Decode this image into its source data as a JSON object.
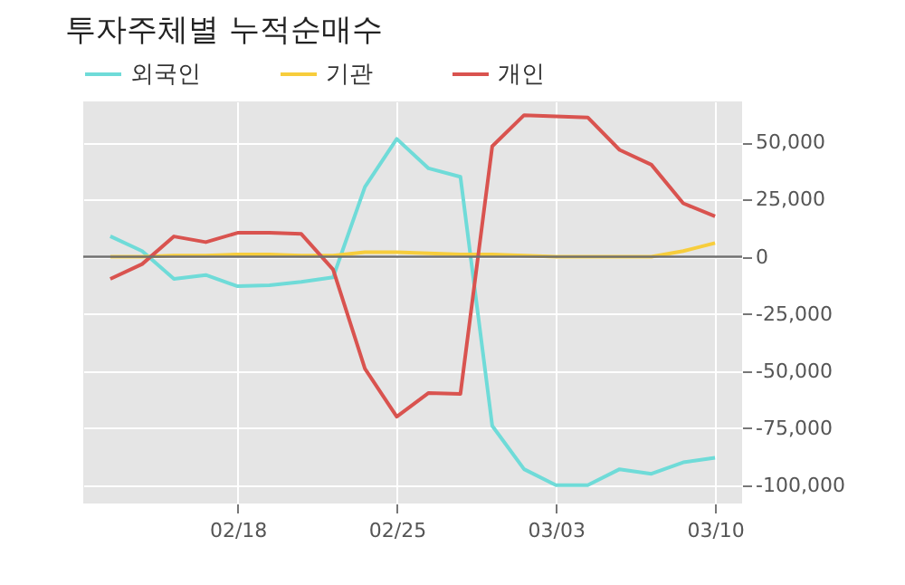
{
  "chart_data": {
    "type": "line",
    "title": "투자주체별 누적순매수",
    "categories": [
      null,
      null,
      null,
      null,
      "02/18",
      null,
      null,
      null,
      null,
      "02/25",
      null,
      null,
      null,
      null,
      "03/03",
      null,
      null,
      null,
      null,
      "03/10"
    ],
    "series": [
      {
        "name": "외국인",
        "color": "#6fdbd8",
        "values": [
          9000,
          2500,
          -9700,
          -8000,
          -12900,
          -12500,
          -11000,
          -9000,
          30600,
          51600,
          38700,
          35000,
          -74000,
          -93000,
          -100000,
          -100000,
          -93000,
          -95000,
          -90000,
          -88000
        ]
      },
      {
        "name": "기관",
        "color": "#f7cd3c",
        "values": [
          0,
          0,
          500,
          500,
          1000,
          1000,
          500,
          500,
          2000,
          2000,
          1500,
          1000,
          1000,
          500,
          0,
          0,
          0,
          0,
          2500,
          6000
        ]
      },
      {
        "name": "개인",
        "color": "#d9534f",
        "values": [
          -9700,
          -3200,
          8900,
          6400,
          10500,
          10500,
          10000,
          -5600,
          -49000,
          -70000,
          -59600,
          -60000,
          48400,
          62000,
          61500,
          61000,
          46800,
          40300,
          23400,
          17700
        ]
      }
    ],
    "ylim": [
      -108000,
      68000
    ],
    "yticks": [
      {
        "value": -100000,
        "label": "-100,000"
      },
      {
        "value": -75000,
        "label": "-75,000"
      },
      {
        "value": -50000,
        "label": "-50,000"
      },
      {
        "value": -25000,
        "label": "-25,000"
      },
      0,
      {
        "value": 25000,
        "label": "25,000"
      },
      {
        "value": 50000,
        "label": "50,000"
      }
    ],
    "ref_lines": [
      {
        "axis": "y",
        "value": 0,
        "color": "#707070"
      }
    ],
    "grid": true,
    "legend": "top left",
    "marker": "none",
    "line_style": "solid"
  }
}
